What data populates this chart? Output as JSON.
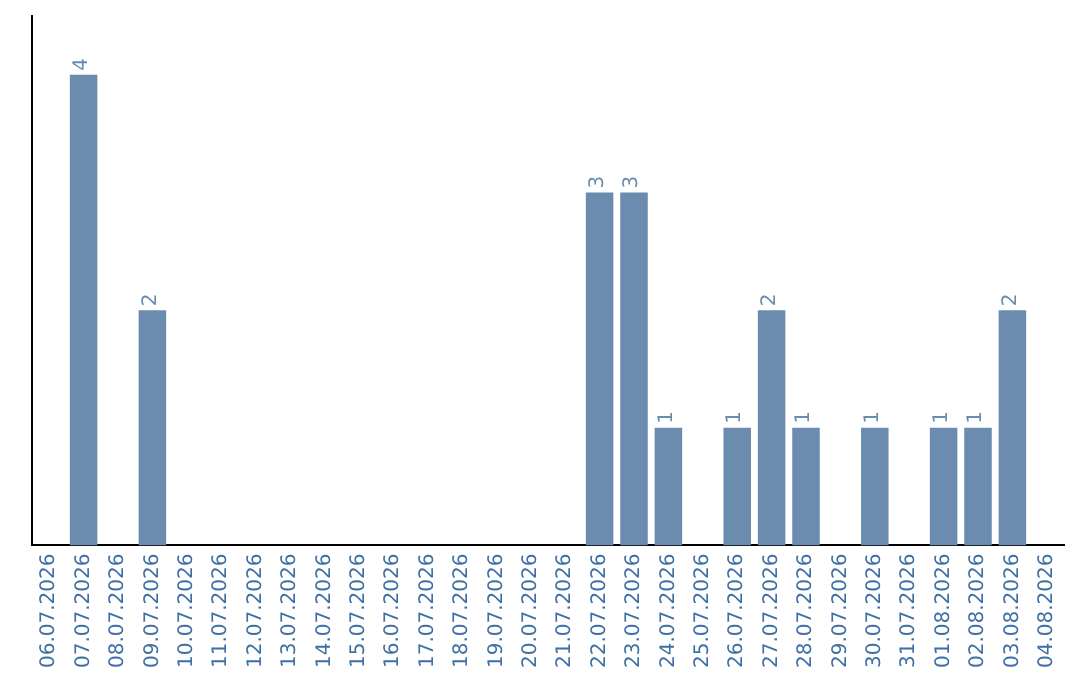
{
  "chart_data": {
    "type": "bar",
    "color": "#6b8cae",
    "categories": [
      "06.07.2026",
      "07.07.2026",
      "08.07.2026",
      "09.07.2026",
      "10.07.2026",
      "11.07.2026",
      "12.07.2026",
      "13.07.2026",
      "14.07.2026",
      "15.07.2026",
      "16.07.2026",
      "17.07.2026",
      "18.07.2026",
      "19.07.2026",
      "20.07.2026",
      "21.07.2026",
      "22.07.2026",
      "23.07.2026",
      "24.07.2026",
      "25.07.2026",
      "26.07.2026",
      "27.07.2026",
      "28.07.2026",
      "29.07.2026",
      "30.07.2026",
      "31.07.2026",
      "01.08.2026",
      "02.08.2026",
      "03.08.2026",
      "04.08.2026"
    ],
    "values": [
      0,
      4,
      0,
      2,
      0,
      0,
      0,
      0,
      0,
      0,
      0,
      0,
      0,
      0,
      0,
      0,
      3,
      3,
      1,
      0,
      1,
      2,
      1,
      0,
      1,
      0,
      1,
      1,
      2,
      0
    ],
    "value_labels": [
      null,
      "4",
      null,
      "2",
      null,
      null,
      null,
      null,
      null,
      null,
      null,
      null,
      null,
      null,
      null,
      null,
      "3",
      "3",
      "1",
      null,
      "1",
      "2",
      "1",
      null,
      "1",
      null,
      "1",
      "1",
      "2",
      null
    ],
    "grid": false,
    "legend": false
  }
}
